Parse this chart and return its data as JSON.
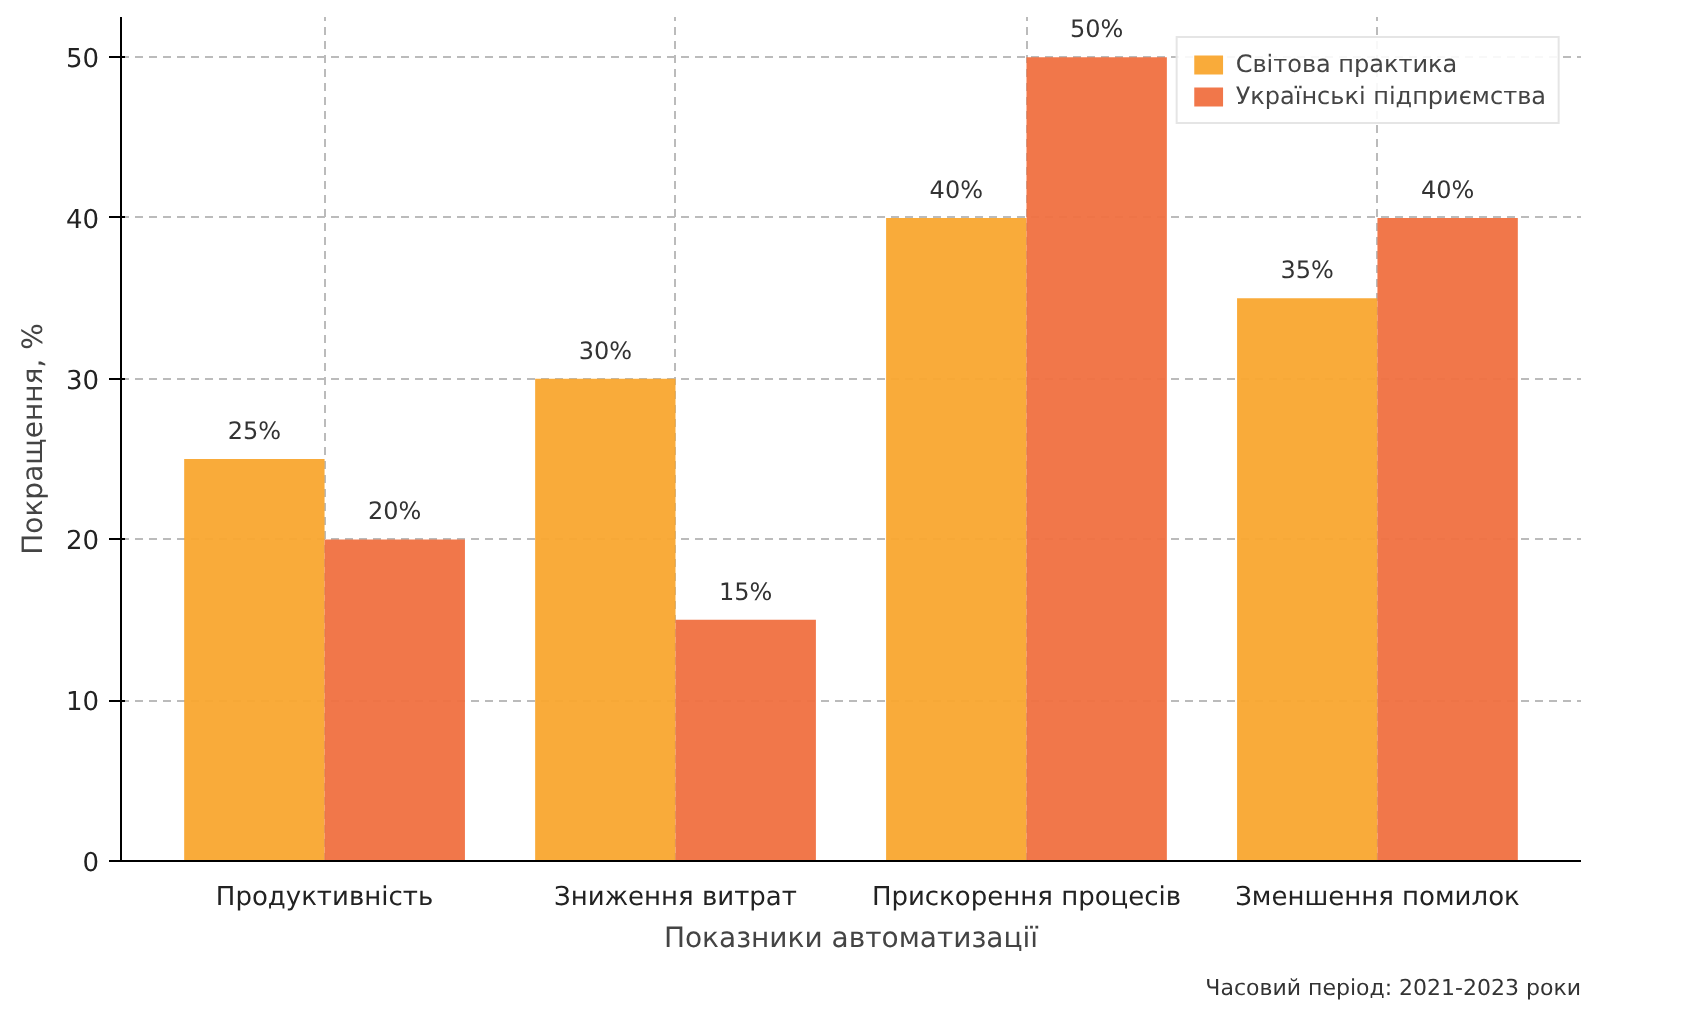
{
  "chart_data": {
    "type": "bar",
    "xlabel": "Показники автоматизації",
    "ylabel": "Покращення, %",
    "categories": [
      "Продуктивність",
      "Зниження витрат",
      "Прискорення процесів",
      "Зменшення помилок"
    ],
    "series": [
      {
        "name": "Світова практика",
        "color": "#f9a72f",
        "values": [
          25,
          30,
          40,
          35
        ],
        "value_labels": [
          "25%",
          "30%",
          "40%",
          "35%"
        ]
      },
      {
        "name": "Українські підприємства",
        "color": "#f07040",
        "values": [
          20,
          15,
          50,
          40
        ],
        "value_labels": [
          "20%",
          "15%",
          "50%",
          "40%"
        ]
      }
    ],
    "ylim": [
      0,
      52.5
    ],
    "yticks": [
      0,
      10,
      20,
      30,
      40,
      50
    ],
    "grid": true,
    "legend": "top right",
    "annotations": [
      "Часовий період: 2021-2023 роки"
    ]
  }
}
